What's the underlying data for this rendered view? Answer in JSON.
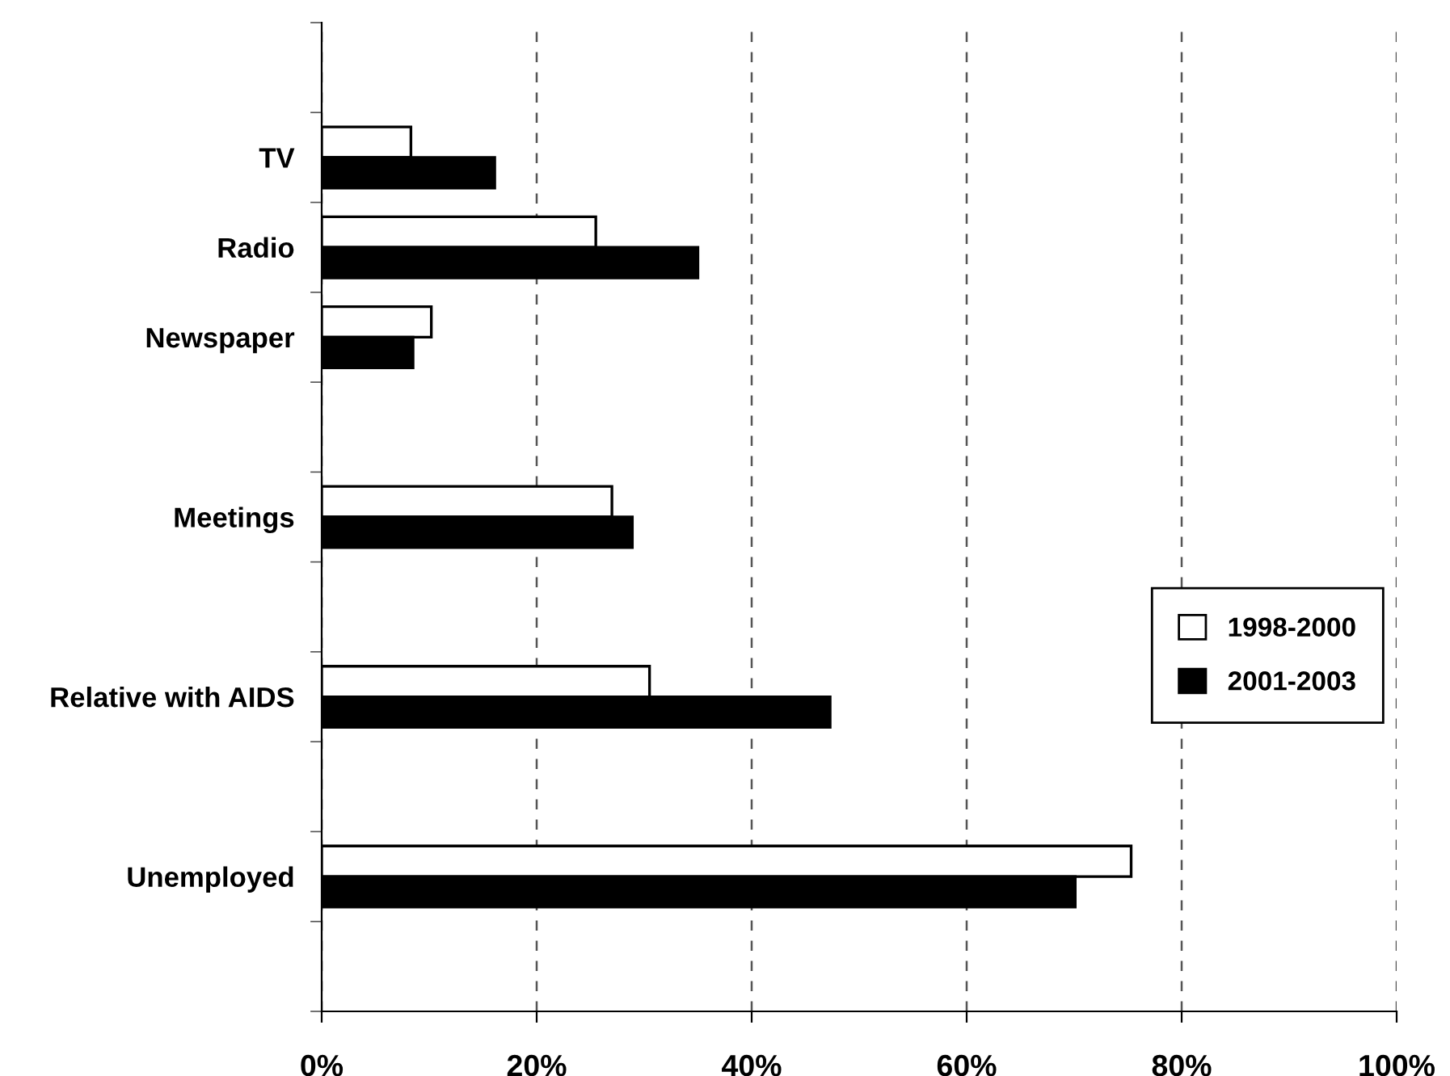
{
  "chart_data": {
    "type": "bar",
    "orientation": "horizontal",
    "categories": [
      null,
      "TV",
      "Radio",
      "Newspaper",
      null,
      "Meetings",
      null,
      "Relative with AIDS",
      null,
      "Unemployed",
      null
    ],
    "series": [
      {
        "name": "1998-2000",
        "color": "#ffffff",
        "values": [
          null,
          8.3,
          25.5,
          10.2,
          null,
          27.0,
          null,
          30.5,
          null,
          75.3,
          null
        ]
      },
      {
        "name": "2001-2003",
        "color": "#000000",
        "values": [
          null,
          16.1,
          35.0,
          8.5,
          null,
          28.9,
          null,
          47.3,
          null,
          70.1,
          null
        ]
      }
    ],
    "xlim": [
      0,
      100
    ],
    "xticks": [
      {
        "value": 0,
        "label": "0%"
      },
      {
        "value": 20,
        "label": "20%"
      },
      {
        "value": 40,
        "label": "40%"
      },
      {
        "value": 60,
        "label": "60%"
      },
      {
        "value": 80,
        "label": "80%"
      },
      {
        "value": 100,
        "label": "100%"
      }
    ],
    "grid": "x",
    "legend": "right"
  }
}
